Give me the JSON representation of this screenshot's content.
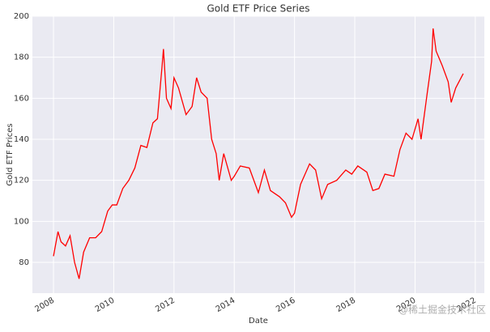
{
  "chart_data": {
    "type": "line",
    "title": "Gold ETF Price Series",
    "x_label": "Date",
    "y_label": "Gold ETF Prices",
    "watermark": "@稀土掘金技术社区",
    "x": [
      2008.0,
      2008.15,
      2008.25,
      2008.4,
      2008.55,
      2008.7,
      2008.85,
      2009.0,
      2009.2,
      2009.4,
      2009.6,
      2009.8,
      2009.95,
      2010.1,
      2010.3,
      2010.5,
      2010.7,
      2010.9,
      2011.1,
      2011.3,
      2011.45,
      2011.6,
      2011.65,
      2011.75,
      2011.9,
      2012.0,
      2012.15,
      2012.4,
      2012.6,
      2012.75,
      2012.9,
      2013.1,
      2013.25,
      2013.4,
      2013.5,
      2013.65,
      2013.9,
      2014.0,
      2014.2,
      2014.5,
      2014.8,
      2015.0,
      2015.2,
      2015.5,
      2015.7,
      2015.9,
      2016.0,
      2016.2,
      2016.5,
      2016.7,
      2016.9,
      2017.1,
      2017.4,
      2017.7,
      2017.9,
      2018.1,
      2018.4,
      2018.6,
      2018.8,
      2019.0,
      2019.3,
      2019.5,
      2019.7,
      2019.9,
      2020.1,
      2020.2,
      2020.4,
      2020.55,
      2020.6,
      2020.7,
      2020.9,
      2021.1,
      2021.2,
      2021.35,
      2021.6
    ],
    "series": [
      {
        "name": "Gold ETF Prices",
        "color": "#ff0000",
        "values": [
          83,
          95,
          90,
          88,
          93,
          80,
          72,
          85,
          92,
          92,
          95,
          105,
          108,
          108,
          116,
          120,
          126,
          137,
          136,
          148,
          150,
          175,
          184,
          160,
          155,
          170,
          165,
          152,
          156,
          170,
          163,
          160,
          140,
          133,
          120,
          133,
          120,
          122,
          127,
          126,
          114,
          125,
          115,
          112,
          109,
          102,
          104,
          118,
          128,
          125,
          111,
          118,
          120,
          125,
          123,
          127,
          124,
          115,
          116,
          123,
          122,
          135,
          143,
          140,
          150,
          140,
          162,
          178,
          194,
          183,
          176,
          168,
          158,
          165,
          172
        ]
      }
    ],
    "xlim": [
      2007.3,
      2022.3
    ],
    "xticks": [
      2008,
      2010,
      2012,
      2014,
      2016,
      2018,
      2020,
      2022
    ],
    "ylim": [
      65,
      200
    ],
    "yticks": [
      80,
      100,
      120,
      140,
      160,
      180,
      200
    ],
    "grid": true
  }
}
